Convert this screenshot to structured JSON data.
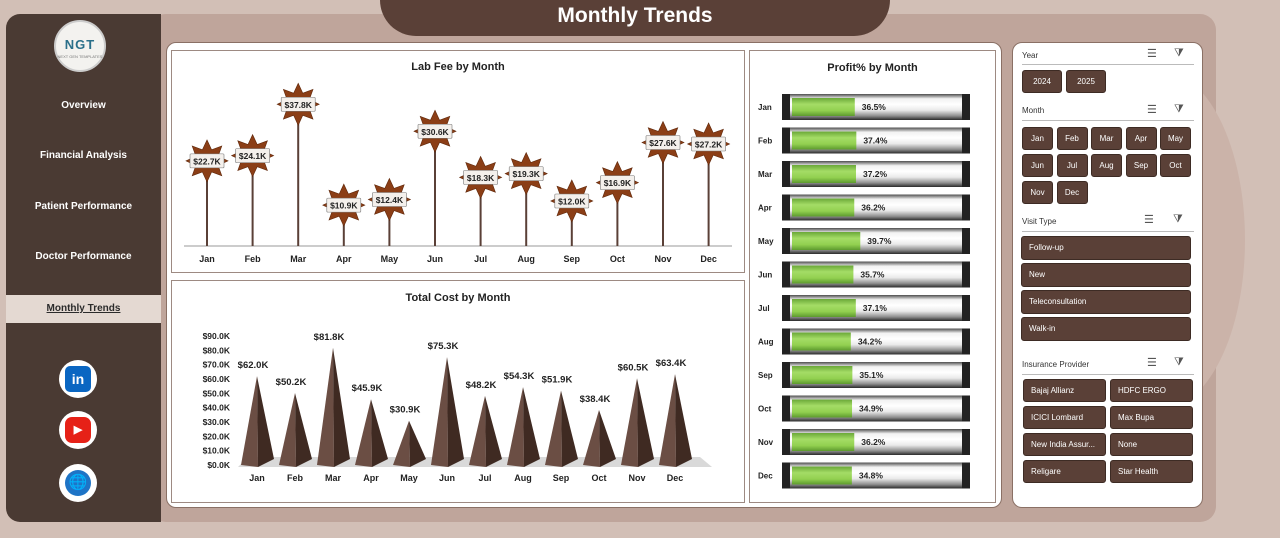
{
  "page_title": "Monthly Trends",
  "logo": {
    "text": "NGT",
    "subtext": "NEXT GEN TEMPLATES"
  },
  "nav": {
    "items": [
      {
        "label": "Overview",
        "active": false
      },
      {
        "label": "Financial Analysis",
        "active": false
      },
      {
        "label": "Patient  Performance",
        "active": false
      },
      {
        "label": "Doctor Performance",
        "active": false
      },
      {
        "label": "Monthly Trends",
        "active": true
      }
    ]
  },
  "social": [
    {
      "icon": "linkedin-icon",
      "glyph": "in"
    },
    {
      "icon": "youtube-icon",
      "glyph": "▶"
    },
    {
      "icon": "globe-icon",
      "glyph": "🌐"
    }
  ],
  "slicers": {
    "year": {
      "label": "Year",
      "options": [
        "2024",
        "2025"
      ]
    },
    "month": {
      "label": "Month",
      "options": [
        "Jan",
        "Feb",
        "Mar",
        "Apr",
        "May",
        "Jun",
        "Jul",
        "Aug",
        "Sep",
        "Oct",
        "Nov",
        "Dec"
      ]
    },
    "visit_type": {
      "label": "Visit Type",
      "options": [
        "Follow-up",
        "New",
        "Teleconsultation",
        "Walk-in"
      ]
    },
    "insurance": {
      "label": "Insurance Provider",
      "options": [
        "Bajaj Allianz",
        "HDFC ERGO",
        "ICICI Lombard",
        "Max Bupa",
        "New India Assur...",
        "None",
        "Religare",
        "Star Health"
      ]
    }
  },
  "colors": {
    "brown": "#5a4037",
    "dark_sidebar": "#4a3a33",
    "green": "#92d050",
    "star": "#8b3e16"
  },
  "chart_data": [
    {
      "type": "line",
      "title": "Lab Fee by Month",
      "categories": [
        "Jan",
        "Feb",
        "Mar",
        "Apr",
        "May",
        "Jun",
        "Jul",
        "Aug",
        "Sep",
        "Oct",
        "Nov",
        "Dec"
      ],
      "values": [
        22.7,
        24.1,
        37.8,
        10.9,
        12.4,
        30.6,
        18.3,
        19.3,
        12.0,
        16.9,
        27.6,
        27.2
      ],
      "labels": [
        "$22.7K",
        "$24.1K",
        "$37.8K",
        "$10.9K",
        "$12.4K",
        "$30.6K",
        "$18.3K",
        "$19.3K",
        "$12.0K",
        "$16.9K",
        "$27.6K",
        "$27.2K"
      ],
      "ylim": [
        0,
        40
      ]
    },
    {
      "type": "bar",
      "title": "Total Cost by Month",
      "categories": [
        "Jan",
        "Feb",
        "Mar",
        "Apr",
        "May",
        "Jun",
        "Jul",
        "Aug",
        "Sep",
        "Oct",
        "Nov",
        "Dec"
      ],
      "values": [
        62.0,
        50.2,
        81.8,
        45.9,
        30.9,
        75.3,
        48.2,
        54.3,
        51.9,
        38.4,
        60.5,
        63.4
      ],
      "labels": [
        "$62.0K",
        "$50.2K",
        "$81.8K",
        "$45.9K",
        "$30.9K",
        "$75.3K",
        "$48.2K",
        "$54.3K",
        "$51.9K",
        "$38.4K",
        "$60.5K",
        "$63.4K"
      ],
      "yticks": [
        "$0.0K",
        "$10.0K",
        "$20.0K",
        "$30.0K",
        "$40.0K",
        "$50.0K",
        "$60.0K",
        "$70.0K",
        "$80.0K",
        "$90.0K"
      ],
      "ylim": [
        0,
        90
      ]
    },
    {
      "type": "bar",
      "title": "Profit% by Month",
      "categories": [
        "Jan",
        "Feb",
        "Mar",
        "Apr",
        "May",
        "Jun",
        "Jul",
        "Aug",
        "Sep",
        "Oct",
        "Nov",
        "Dec"
      ],
      "values": [
        36.5,
        37.4,
        37.2,
        36.2,
        39.7,
        35.7,
        37.1,
        34.2,
        35.1,
        34.9,
        36.2,
        34.8
      ],
      "labels": [
        "36.5%",
        "37.4%",
        "37.2%",
        "36.2%",
        "39.7%",
        "35.7%",
        "37.1%",
        "34.2%",
        "35.1%",
        "34.9%",
        "36.2%",
        "34.8%"
      ],
      "xlim": [
        0,
        100
      ]
    }
  ]
}
